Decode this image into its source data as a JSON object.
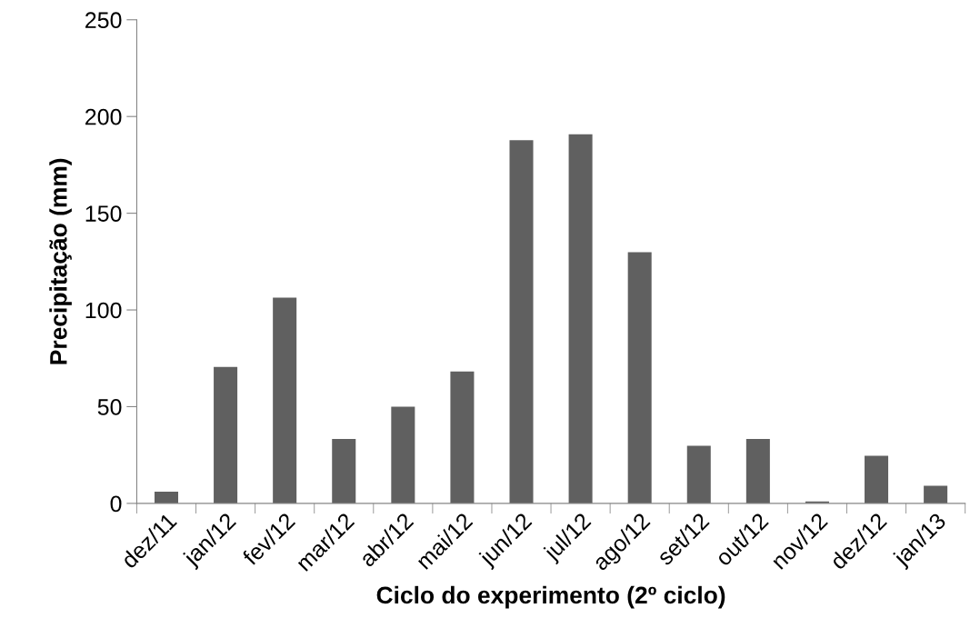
{
  "chart_data": {
    "type": "bar",
    "xlabel": "Ciclo do experimento (2º ciclo)",
    "ylabel": "Precipitação (mm)",
    "categories": [
      "dez/11",
      "jan/12",
      "fev/12",
      "mar/12",
      "abr/12",
      "mai/12",
      "jun/12",
      "jul/12",
      "ago/12",
      "set/12",
      "out/12",
      "nov/12",
      "dez/12",
      "jan/13"
    ],
    "values": [
      6,
      70.5,
      106.4,
      33.3,
      50,
      68.2,
      187.8,
      190.8,
      129.8,
      29.8,
      33.3,
      1,
      24.6,
      9.1
    ],
    "color": "#606060",
    "ylim": [
      0,
      250
    ],
    "yticks": [
      0,
      50,
      100,
      150,
      200,
      250
    ],
    "grid": false
  }
}
